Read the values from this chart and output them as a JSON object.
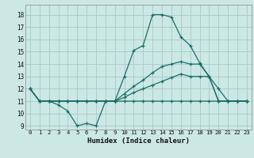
{
  "xlabel": "Humidex (Indice chaleur)",
  "background_color": "#cce8e4",
  "grid_color": "#aacccc",
  "line_color": "#1a6e6a",
  "xlim": [
    -0.5,
    23.5
  ],
  "ylim": [
    8.7,
    18.8
  ],
  "xticks": [
    0,
    1,
    2,
    3,
    4,
    5,
    6,
    7,
    8,
    9,
    10,
    11,
    12,
    13,
    14,
    15,
    16,
    17,
    18,
    19,
    20,
    21,
    22,
    23
  ],
  "yticks": [
    9,
    10,
    11,
    12,
    13,
    14,
    15,
    16,
    17,
    18
  ],
  "series": [
    [
      12,
      11,
      11,
      10.7,
      10.2,
      9,
      9.2,
      9,
      11,
      11,
      13,
      15.1,
      15.5,
      18,
      18,
      17.8,
      16.2,
      15.5,
      14.1,
      13,
      12,
      11,
      11,
      11
    ],
    [
      12,
      11,
      11,
      11,
      11,
      11,
      11,
      11,
      11,
      11,
      11.6,
      12.2,
      12.7,
      13.3,
      13.8,
      14.0,
      14.2,
      14.0,
      14.0,
      13,
      11,
      11,
      11,
      11
    ],
    [
      12,
      11,
      11,
      11,
      11,
      11,
      11,
      11,
      11,
      11,
      11.3,
      11.7,
      12.0,
      12.3,
      12.6,
      12.9,
      13.2,
      13.0,
      13.0,
      13,
      11,
      11,
      11,
      11
    ],
    [
      12,
      11,
      11,
      11,
      11,
      11,
      11,
      11,
      11,
      11,
      11,
      11,
      11,
      11,
      11,
      11,
      11,
      11,
      11,
      11,
      11,
      11,
      11,
      11
    ]
  ]
}
